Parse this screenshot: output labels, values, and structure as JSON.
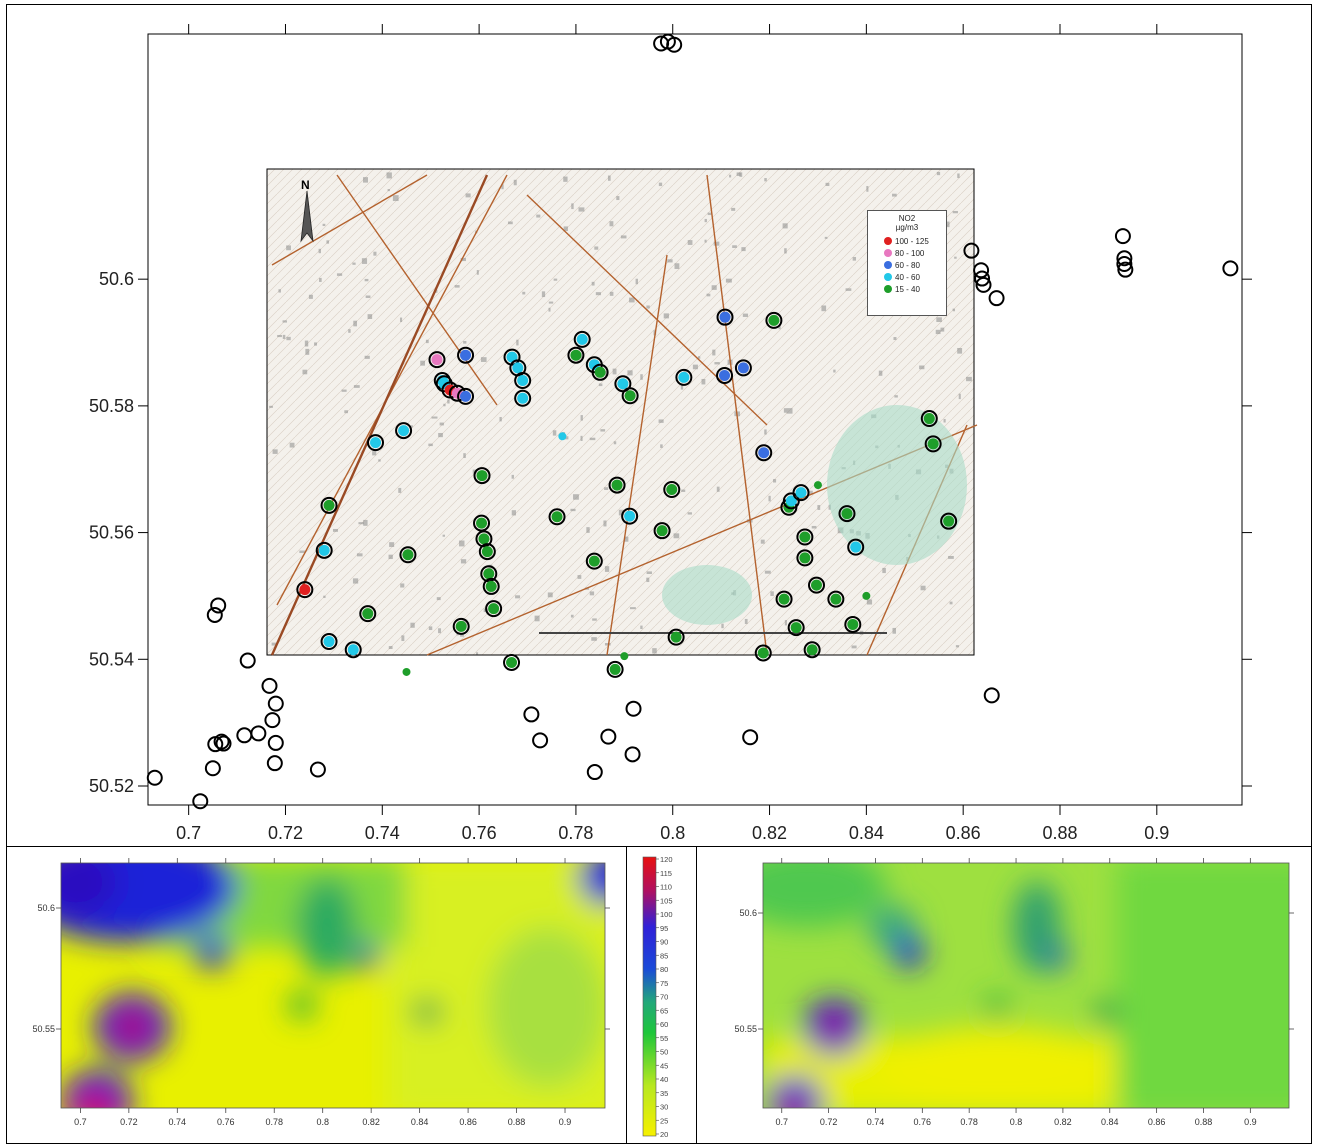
{
  "main_plot": {
    "x_ticks": [
      "0.7",
      "0.72",
      "0.74",
      "0.76",
      "0.78",
      "0.8",
      "0.82",
      "0.84",
      "0.86",
      "0.88",
      "0.9"
    ],
    "x_tick_values": [
      0.7,
      0.72,
      0.74,
      0.76,
      0.78,
      0.8,
      0.82,
      0.84,
      0.86,
      0.88,
      0.9
    ],
    "y_ticks": [
      "50.52",
      "50.54",
      "50.56",
      "50.58",
      "50.6"
    ],
    "y_tick_values": [
      50.52,
      50.54,
      50.56,
      50.58,
      50.6
    ],
    "xlim": [
      0.6916,
      0.9176
    ],
    "ylim": [
      50.517,
      50.6387
    ],
    "sites_outside_map": [
      [
        0.7976,
        50.6372
      ],
      [
        0.799,
        50.6375
      ],
      [
        0.8003,
        50.637
      ],
      [
        0.8617,
        50.6045
      ],
      [
        0.8637,
        50.6014
      ],
      [
        0.8639,
        50.6001
      ],
      [
        0.8642,
        50.5991
      ],
      [
        0.8669,
        50.597
      ],
      [
        0.893,
        50.6068
      ],
      [
        0.8933,
        50.6033
      ],
      [
        0.8933,
        50.6024
      ],
      [
        0.8935,
        50.6015
      ],
      [
        0.9152,
        50.6017
      ],
      [
        0.7061,
        50.5485
      ],
      [
        0.7054,
        50.547
      ],
      [
        0.7122,
        50.5398
      ],
      [
        0.7167,
        50.5358
      ],
      [
        0.718,
        50.533
      ],
      [
        0.7173,
        50.5304
      ],
      [
        0.7144,
        50.5283
      ],
      [
        0.7115,
        50.528
      ],
      [
        0.7055,
        50.5266
      ],
      [
        0.7072,
        50.5267
      ],
      [
        0.7068,
        50.527
      ],
      [
        0.705,
        50.5228
      ],
      [
        0.718,
        50.5268
      ],
      [
        0.7178,
        50.5236
      ],
      [
        0.7267,
        50.5226
      ],
      [
        0.693,
        50.5213
      ],
      [
        0.7024,
        50.5176
      ],
      [
        0.7708,
        50.5313
      ],
      [
        0.7726,
        50.5272
      ],
      [
        0.7867,
        50.5278
      ],
      [
        0.7919,
        50.5322
      ],
      [
        0.7917,
        50.525
      ],
      [
        0.7839,
        50.5222
      ],
      [
        0.816,
        50.5277
      ],
      [
        0.8659,
        50.5343
      ]
    ]
  },
  "map_inset": {
    "north_label": "N",
    "legend": {
      "title_line1": "NO2",
      "title_line2": "µg/m3",
      "entries": [
        {
          "label": "100 - 125",
          "color": "#e02020"
        },
        {
          "label": "80 - 100",
          "color": "#e878c0"
        },
        {
          "label": "60 -  80",
          "color": "#3a6ee0"
        },
        {
          "label": "40 -  60",
          "color": "#22c8e8"
        },
        {
          "label": "15 -  40",
          "color": "#1e9e2a"
        }
      ]
    },
    "sites": [
      {
        "x": 0.7513,
        "y": 50.5873,
        "c": "#e878c0"
      },
      {
        "x": 0.7524,
        "y": 50.584,
        "c": "#22c8e8"
      },
      {
        "x": 0.7528,
        "y": 50.5835,
        "c": "#22c8e8"
      },
      {
        "x": 0.754,
        "y": 50.5825,
        "c": "#e02020"
      },
      {
        "x": 0.7555,
        "y": 50.582,
        "c": "#e878c0"
      },
      {
        "x": 0.7572,
        "y": 50.5815,
        "c": "#3a6ee0"
      },
      {
        "x": 0.7572,
        "y": 50.588,
        "c": "#3a6ee0"
      },
      {
        "x": 0.7668,
        "y": 50.5877,
        "c": "#22c8e8"
      },
      {
        "x": 0.768,
        "y": 50.586,
        "c": "#22c8e8"
      },
      {
        "x": 0.769,
        "y": 50.584,
        "c": "#22c8e8"
      },
      {
        "x": 0.769,
        "y": 50.5812,
        "c": "#22c8e8"
      },
      {
        "x": 0.78,
        "y": 50.588,
        "c": "#1e9e2a"
      },
      {
        "x": 0.7813,
        "y": 50.5905,
        "c": "#22c8e8"
      },
      {
        "x": 0.7838,
        "y": 50.5865,
        "c": "#22c8e8"
      },
      {
        "x": 0.785,
        "y": 50.5853,
        "c": "#1e9e2a"
      },
      {
        "x": 0.7897,
        "y": 50.5835,
        "c": "#22c8e8"
      },
      {
        "x": 0.7912,
        "y": 50.5816,
        "c": "#1e9e2a"
      },
      {
        "x": 0.8023,
        "y": 50.5845,
        "c": "#22c8e8"
      },
      {
        "x": 0.8107,
        "y": 50.5848,
        "c": "#3a6ee0"
      },
      {
        "x": 0.8108,
        "y": 50.594,
        "c": "#3a6ee0"
      },
      {
        "x": 0.8146,
        "y": 50.586,
        "c": "#3a6ee0"
      },
      {
        "x": 0.8209,
        "y": 50.5935,
        "c": "#1e9e2a"
      },
      {
        "x": 0.8188,
        "y": 50.5726,
        "c": "#3a6ee0"
      },
      {
        "x": 0.7386,
        "y": 50.5742,
        "c": "#22c8e8"
      },
      {
        "x": 0.7444,
        "y": 50.5761,
        "c": "#22c8e8"
      },
      {
        "x": 0.7606,
        "y": 50.569,
        "c": "#1e9e2a"
      },
      {
        "x": 0.7885,
        "y": 50.5675,
        "c": "#1e9e2a"
      },
      {
        "x": 0.7998,
        "y": 50.5668,
        "c": "#1e9e2a"
      },
      {
        "x": 0.7911,
        "y": 50.5626,
        "c": "#22c8e8"
      },
      {
        "x": 0.7761,
        "y": 50.5625,
        "c": "#1e9e2a"
      },
      {
        "x": 0.7605,
        "y": 50.5615,
        "c": "#1e9e2a"
      },
      {
        "x": 0.761,
        "y": 50.559,
        "c": "#1e9e2a"
      },
      {
        "x": 0.7617,
        "y": 50.557,
        "c": "#1e9e2a"
      },
      {
        "x": 0.762,
        "y": 50.5535,
        "c": "#1e9e2a"
      },
      {
        "x": 0.7625,
        "y": 50.5515,
        "c": "#1e9e2a"
      },
      {
        "x": 0.763,
        "y": 50.548,
        "c": "#1e9e2a"
      },
      {
        "x": 0.7838,
        "y": 50.5555,
        "c": "#1e9e2a"
      },
      {
        "x": 0.7978,
        "y": 50.5603,
        "c": "#1e9e2a"
      },
      {
        "x": 0.729,
        "y": 50.5643,
        "c": "#1e9e2a"
      },
      {
        "x": 0.728,
        "y": 50.5572,
        "c": "#22c8e8"
      },
      {
        "x": 0.7453,
        "y": 50.5565,
        "c": "#1e9e2a"
      },
      {
        "x": 0.724,
        "y": 50.551,
        "c": "#e02020"
      },
      {
        "x": 0.737,
        "y": 50.5472,
        "c": "#1e9e2a"
      },
      {
        "x": 0.7563,
        "y": 50.5452,
        "c": "#1e9e2a"
      },
      {
        "x": 0.729,
        "y": 50.5428,
        "c": "#22c8e8"
      },
      {
        "x": 0.734,
        "y": 50.5415,
        "c": "#22c8e8"
      },
      {
        "x": 0.7667,
        "y": 50.5395,
        "c": "#1e9e2a"
      },
      {
        "x": 0.7881,
        "y": 50.5384,
        "c": "#1e9e2a"
      },
      {
        "x": 0.8007,
        "y": 50.5435,
        "c": "#1e9e2a"
      },
      {
        "x": 0.8187,
        "y": 50.541,
        "c": "#1e9e2a"
      },
      {
        "x": 0.8288,
        "y": 50.5415,
        "c": "#1e9e2a"
      },
      {
        "x": 0.8255,
        "y": 50.545,
        "c": "#1e9e2a"
      },
      {
        "x": 0.823,
        "y": 50.5495,
        "c": "#1e9e2a"
      },
      {
        "x": 0.8297,
        "y": 50.5517,
        "c": "#1e9e2a"
      },
      {
        "x": 0.8337,
        "y": 50.5495,
        "c": "#1e9e2a"
      },
      {
        "x": 0.8372,
        "y": 50.5455,
        "c": "#1e9e2a"
      },
      {
        "x": 0.8273,
        "y": 50.556,
        "c": "#1e9e2a"
      },
      {
        "x": 0.8273,
        "y": 50.5593,
        "c": "#1e9e2a"
      },
      {
        "x": 0.824,
        "y": 50.564,
        "c": "#1e9e2a"
      },
      {
        "x": 0.8245,
        "y": 50.565,
        "c": "#22c8e8"
      },
      {
        "x": 0.8265,
        "y": 50.5663,
        "c": "#22c8e8"
      },
      {
        "x": 0.836,
        "y": 50.563,
        "c": "#1e9e2a"
      },
      {
        "x": 0.8378,
        "y": 50.5577,
        "c": "#22c8e8"
      },
      {
        "x": 0.853,
        "y": 50.578,
        "c": "#1e9e2a"
      },
      {
        "x": 0.8538,
        "y": 50.574,
        "c": "#1e9e2a"
      },
      {
        "x": 0.857,
        "y": 50.5618,
        "c": "#1e9e2a"
      }
    ],
    "unringed_sites": [
      {
        "x": 0.7772,
        "y": 50.5752,
        "c": "#22c8e8"
      },
      {
        "x": 0.83,
        "y": 50.5675,
        "c": "#1e9e2a"
      },
      {
        "x": 0.84,
        "y": 50.55,
        "c": "#1e9e2a"
      },
      {
        "x": 0.745,
        "y": 50.538,
        "c": "#1e9e2a"
      },
      {
        "x": 0.79,
        "y": 50.5405,
        "c": "#1e9e2a"
      }
    ]
  },
  "heatmap_left": {
    "x_ticks": [
      "0.7",
      "0.72",
      "0.74",
      "0.76",
      "0.78",
      "0.8",
      "0.82",
      "0.84",
      "0.86",
      "0.88",
      "0.9"
    ],
    "y_ticks": [
      "50.6",
      "50.55"
    ]
  },
  "heatmap_right": {
    "x_ticks": [
      "0.7",
      "0.72",
      "0.74",
      "0.76",
      "0.78",
      "0.8",
      "0.82",
      "0.84",
      "0.86",
      "0.88",
      "0.9"
    ],
    "y_ticks": [
      "50.6",
      "50.55"
    ]
  },
  "colorbar": {
    "labels": [
      "120",
      "115",
      "110",
      "105",
      "100",
      "95",
      "90",
      "85",
      "80",
      "75",
      "70",
      "65",
      "60",
      "55",
      "50",
      "45",
      "40",
      "35",
      "30",
      "25",
      "20"
    ]
  },
  "colors": {
    "scale_low": "#f6f000",
    "scale_mid": "#22c63a",
    "scale_high_blue": "#1a1ae0",
    "scale_top": "#e51010"
  }
}
